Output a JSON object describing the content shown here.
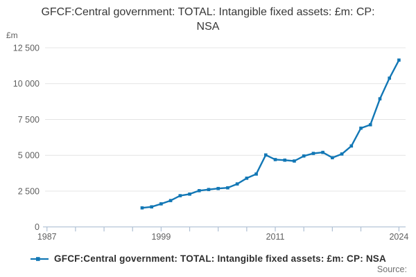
{
  "title": "GFCF:Central government: TOTAL: Intangible fixed assets: £m: CP: NSA",
  "y_axis": {
    "unit": "£m",
    "ticks": [
      0,
      2500,
      5000,
      7500,
      10000,
      12500
    ],
    "tick_labels": [
      "0",
      "2 500",
      "5 000",
      "7 500",
      "10 000",
      "12 500"
    ]
  },
  "x_axis": {
    "minor_ticks": [
      1987,
      1990,
      1993,
      1996,
      1999,
      2002,
      2005,
      2008,
      2011,
      2014,
      2017,
      2020,
      2024
    ],
    "labeled_ticks": [
      {
        "year": 1987,
        "label": "1987"
      },
      {
        "year": 1999,
        "label": "1999"
      },
      {
        "year": 2011,
        "label": "2011"
      },
      {
        "year": 2024,
        "label": "2024"
      }
    ]
  },
  "legend": {
    "label": "GFCF:Central government: TOTAL: Intangible fixed assets: £m: CP: NSA"
  },
  "footer": {
    "source_label": "Source:"
  },
  "colors": {
    "line": "#1277b5",
    "grid": "#e4e4e4",
    "axis": "#aebfd3",
    "title_text": "#373737",
    "tick_text": "#5f5f5f",
    "source_text": "#6f6f6f"
  },
  "chart_data": {
    "type": "line",
    "title": "GFCF:Central government: TOTAL: Intangible fixed assets: £m: CP: NSA",
    "xlabel": "",
    "ylabel": "£m",
    "ylim": [
      0,
      12500
    ],
    "xlim": [
      1986.8,
      2024.7
    ],
    "grid": "horizontal",
    "legend_position": "bottom",
    "x": [
      1997,
      1998,
      1999,
      2000,
      2001,
      2002,
      2003,
      2004,
      2005,
      2006,
      2007,
      2008,
      2009,
      2010,
      2011,
      2012,
      2013,
      2014,
      2015,
      2016,
      2017,
      2018,
      2019,
      2020,
      2021,
      2022,
      2023,
      2024
    ],
    "series": [
      {
        "name": "GFCF:Central government: TOTAL: Intangible fixed assets: £m: CP: NSA",
        "values": [
          1330,
          1400,
          1610,
          1840,
          2180,
          2290,
          2530,
          2610,
          2680,
          2730,
          3000,
          3400,
          3690,
          5020,
          4700,
          4660,
          4600,
          4950,
          5130,
          5200,
          4830,
          5090,
          5650,
          6890,
          7130,
          8940,
          10380,
          11640
        ]
      }
    ]
  }
}
